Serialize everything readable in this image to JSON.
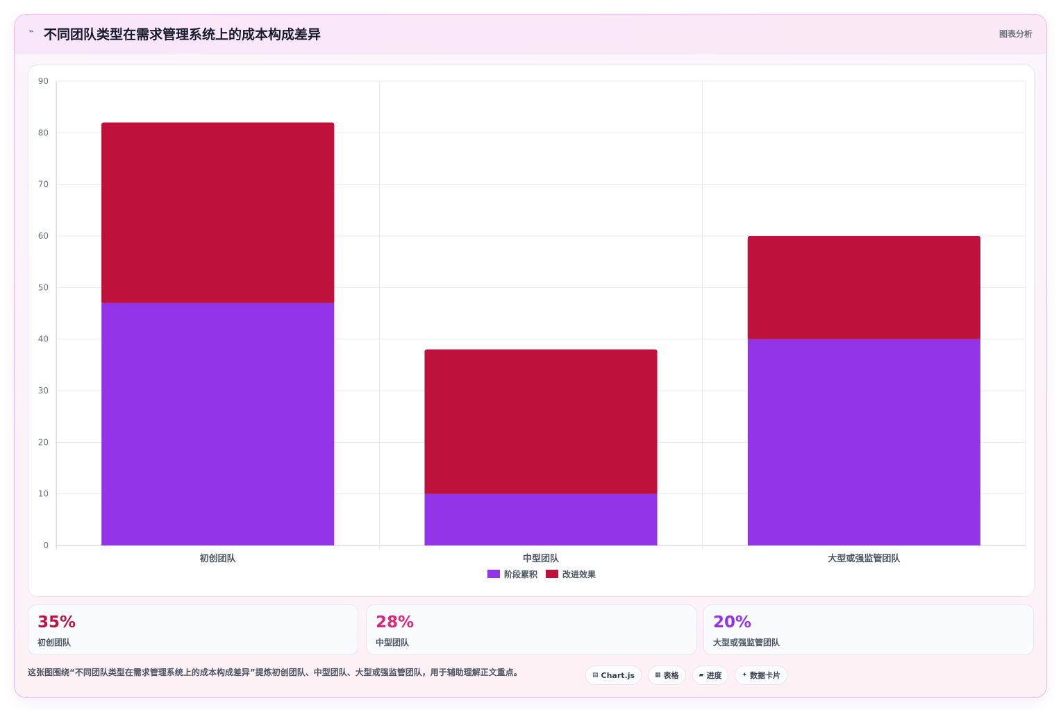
{
  "header": {
    "icon": "trend-line-icon",
    "title": "不同团队类型在需求管理系统上的成本构成差异",
    "tag": "图表分析"
  },
  "chart_data": {
    "type": "bar",
    "stacked": true,
    "categories": [
      "初创团队",
      "中型团队",
      "大型或强监管团队"
    ],
    "series": [
      {
        "name": "阶段累积",
        "color": "#9333e8",
        "values": [
          47,
          10,
          40
        ]
      },
      {
        "name": "改进效果",
        "color": "#be123c",
        "values": [
          35,
          28,
          20
        ]
      }
    ],
    "ylim": [
      0,
      90
    ],
    "yticks": [
      0,
      10,
      20,
      30,
      40,
      50,
      60,
      70,
      80,
      90
    ],
    "grid": true,
    "legend": "bottom-center"
  },
  "stats": [
    {
      "value": "35%",
      "label": "初创团队",
      "color": "#be123c"
    },
    {
      "value": "28%",
      "label": "中型团队",
      "color": "#db2777"
    },
    {
      "value": "20%",
      "label": "大型或强监管团队",
      "color": "#9333e8"
    }
  ],
  "caption": "这张图围绕“不同团队类型在需求管理系统上的成本构成差异”提炼初创团队、中型团队、大型或强监管团队，用于辅助理解正文重点。",
  "chips": [
    {
      "icon": "chart-icon",
      "glyph": "▤",
      "label": "Chart.js"
    },
    {
      "icon": "table-icon",
      "glyph": "▦",
      "label": "表格"
    },
    {
      "icon": "progress-icon",
      "glyph": "▰",
      "label": "进度"
    },
    {
      "icon": "card-icon",
      "glyph": "✦",
      "label": "数据卡片"
    }
  ]
}
